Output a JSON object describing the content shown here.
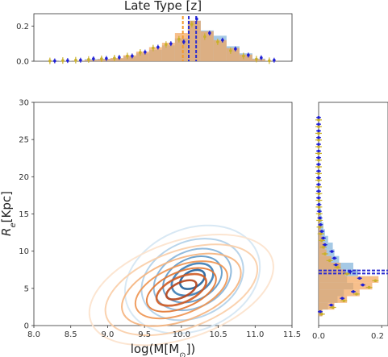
{
  "title": "Late Type [z]",
  "colors": {
    "blue_fill": "#7fb2da",
    "orange_fill": "#f4a45a",
    "tan_fill": "#d2a07f",
    "gold_point": "#c9b02a",
    "blue_point": "#1f1fd6",
    "blue_line": "#2b2bd0",
    "orange_line": "#f29a2e",
    "contour_blue_dark": "#2f6fa8",
    "contour_orange_dark": "#c2501c"
  },
  "chart_data": [
    {
      "id": "main",
      "type": "contour",
      "xlabel": "log(M[$M_{\\odot}$])",
      "ylabel": "$R_e$[Kpc]",
      "xlim": [
        8.0,
        11.5
      ],
      "ylim": [
        0,
        30
      ],
      "xticks": [
        "8.0",
        "8.5",
        "9.0",
        "9.5",
        "10.0",
        "10.5",
        "11.0",
        "11.5"
      ],
      "yticks": [
        "0",
        "5",
        "10",
        "15",
        "20",
        "25",
        "30"
      ],
      "series": [
        {
          "color": "blue",
          "center": [
            10.15,
            6.2
          ],
          "levels": [
            {
              "sx": 0.18,
              "sy": 1.1,
              "angle": 28
            },
            {
              "sx": 0.3,
              "sy": 1.9,
              "angle": 27
            },
            {
              "sx": 0.42,
              "sy": 2.8,
              "angle": 26
            },
            {
              "sx": 0.55,
              "sy": 3.8,
              "angle": 25
            },
            {
              "sx": 0.72,
              "sy": 5.1,
              "angle": 24
            },
            {
              "sx": 0.95,
              "sy": 6.8,
              "angle": 23
            }
          ]
        },
        {
          "color": "orange",
          "center": [
            10.0,
            4.8
          ],
          "levels": [
            {
              "sx": 0.22,
              "sy": 1.0,
              "angle": 25
            },
            {
              "sx": 0.36,
              "sy": 1.7,
              "angle": 24
            },
            {
              "sx": 0.5,
              "sy": 2.4,
              "angle": 23
            },
            {
              "sx": 0.66,
              "sy": 3.2,
              "angle": 22
            },
            {
              "sx": 0.85,
              "sy": 4.1,
              "angle": 21
            },
            {
              "sx": 1.08,
              "sy": 5.2,
              "angle": 20
            },
            {
              "sx": 1.3,
              "sy": 6.5,
              "angle": 19
            }
          ]
        }
      ]
    },
    {
      "id": "top_histogram",
      "type": "bar",
      "title": "Late Type [z]",
      "xlim": [
        8.0,
        11.5
      ],
      "ylim": [
        0,
        0.27
      ],
      "yticks": [
        "0.0",
        "0.2"
      ],
      "bin_width": 0.175,
      "bins": [
        8.25,
        8.425,
        8.6,
        8.775,
        8.95,
        9.125,
        9.3,
        9.475,
        9.65,
        9.825,
        10.0,
        10.175,
        10.35,
        10.525,
        10.7,
        10.875,
        11.05,
        11.225
      ],
      "series": [
        {
          "color": "blue",
          "values": [
            0.0,
            0.002,
            0.004,
            0.012,
            0.014,
            0.016,
            0.028,
            0.045,
            0.065,
            0.09,
            0.13,
            0.23,
            0.175,
            0.145,
            0.085,
            0.045,
            0.015,
            0.004
          ]
        },
        {
          "color": "orange",
          "values": [
            0.0,
            0.001,
            0.003,
            0.008,
            0.012,
            0.018,
            0.034,
            0.055,
            0.08,
            0.105,
            0.16,
            0.23,
            0.17,
            0.12,
            0.075,
            0.038,
            0.012,
            0.003
          ]
        },
        {
          "color": "gold",
          "values": [
            0.002,
            0.004,
            0.006,
            0.01,
            0.014,
            0.018,
            0.03,
            0.05,
            0.075,
            0.095,
            0.125,
            0.21,
            0.14,
            0.11,
            0.06,
            0.03,
            0.012,
            0.003
          ]
        },
        {
          "color": "blue_points",
          "values": [
            0.002,
            0.004,
            0.006,
            0.014,
            0.016,
            0.022,
            0.03,
            0.052,
            0.08,
            0.1,
            0.11,
            0.24,
            0.16,
            0.12,
            0.07,
            0.035,
            0.02,
            0.006
          ]
        }
      ],
      "vlines": [
        {
          "color": "orange",
          "x": 10.02
        },
        {
          "color": "blue",
          "x": 10.1
        },
        {
          "color": "blue",
          "x": 10.2
        }
      ]
    },
    {
      "id": "right_histogram",
      "type": "bar",
      "orientation": "horizontal",
      "ylim": [
        0,
        30
      ],
      "xlim": [
        0,
        0.22
      ],
      "xticks": [
        "0.0",
        "0.2"
      ],
      "bin_width": 0.9,
      "bins": [
        1.7,
        2.6,
        3.5,
        4.4,
        5.3,
        6.2,
        7.1,
        8.0,
        8.9,
        9.8,
        10.7,
        11.6,
        12.5,
        13.4,
        14.3,
        15.2,
        16.1,
        17.0,
        17.9,
        18.8,
        19.7,
        20.6,
        21.5,
        22.4,
        23.3,
        24.2,
        25.1,
        26.0,
        26.9,
        27.8
      ],
      "series": [
        {
          "color": "blue",
          "values": [
            0.01,
            0.03,
            0.06,
            0.08,
            0.11,
            0.09,
            0.125,
            0.11,
            0.065,
            0.05,
            0.045,
            0.03,
            0.02,
            0.015,
            0.01,
            0.008,
            0.006,
            0.004,
            0.003,
            0.002,
            0.002,
            0.001,
            0.001,
            0.001,
            0.001,
            0.0,
            0.0,
            0.0,
            0.0,
            0.0
          ]
        },
        {
          "color": "orange",
          "values": [
            0.012,
            0.05,
            0.09,
            0.13,
            0.17,
            0.19,
            0.085,
            0.07,
            0.04,
            0.025,
            0.02,
            0.012,
            0.008,
            0.005,
            0.003,
            0.002,
            0.001,
            0.001,
            0.0,
            0.0,
            0.0,
            0.0,
            0.0,
            0.0,
            0.0,
            0.0,
            0.0,
            0.0,
            0.0,
            0.0
          ]
        },
        {
          "color": "gold",
          "values": [
            0.01,
            0.045,
            0.08,
            0.12,
            0.16,
            0.18,
            0.09,
            0.06,
            0.035,
            0.02,
            0.015,
            0.01,
            0.007,
            0.004,
            0.003,
            0.002,
            0.001,
            0.001,
            0.001,
            0.0,
            0.0,
            0.0,
            0.0,
            0.0,
            0.0,
            0.0,
            0.0,
            0.0,
            0.0,
            0.0
          ]
        },
        {
          "color": "blue_points",
          "values": [
            0.005,
            0.04,
            0.075,
            0.11,
            0.14,
            0.13,
            0.1,
            0.055,
            0.05,
            0.042,
            0.02,
            0.015,
            0.01,
            0.006,
            0.004,
            0.002,
            0.001,
            0.0,
            0.0,
            0.0,
            0.0,
            0.0,
            0.0,
            0.0,
            0.0,
            0.0,
            0.0,
            0.0,
            0.0,
            0.0
          ]
        }
      ],
      "hlines": [
        {
          "color": "blue",
          "y": 7.0
        },
        {
          "color": "blue",
          "y": 7.4
        }
      ]
    }
  ]
}
